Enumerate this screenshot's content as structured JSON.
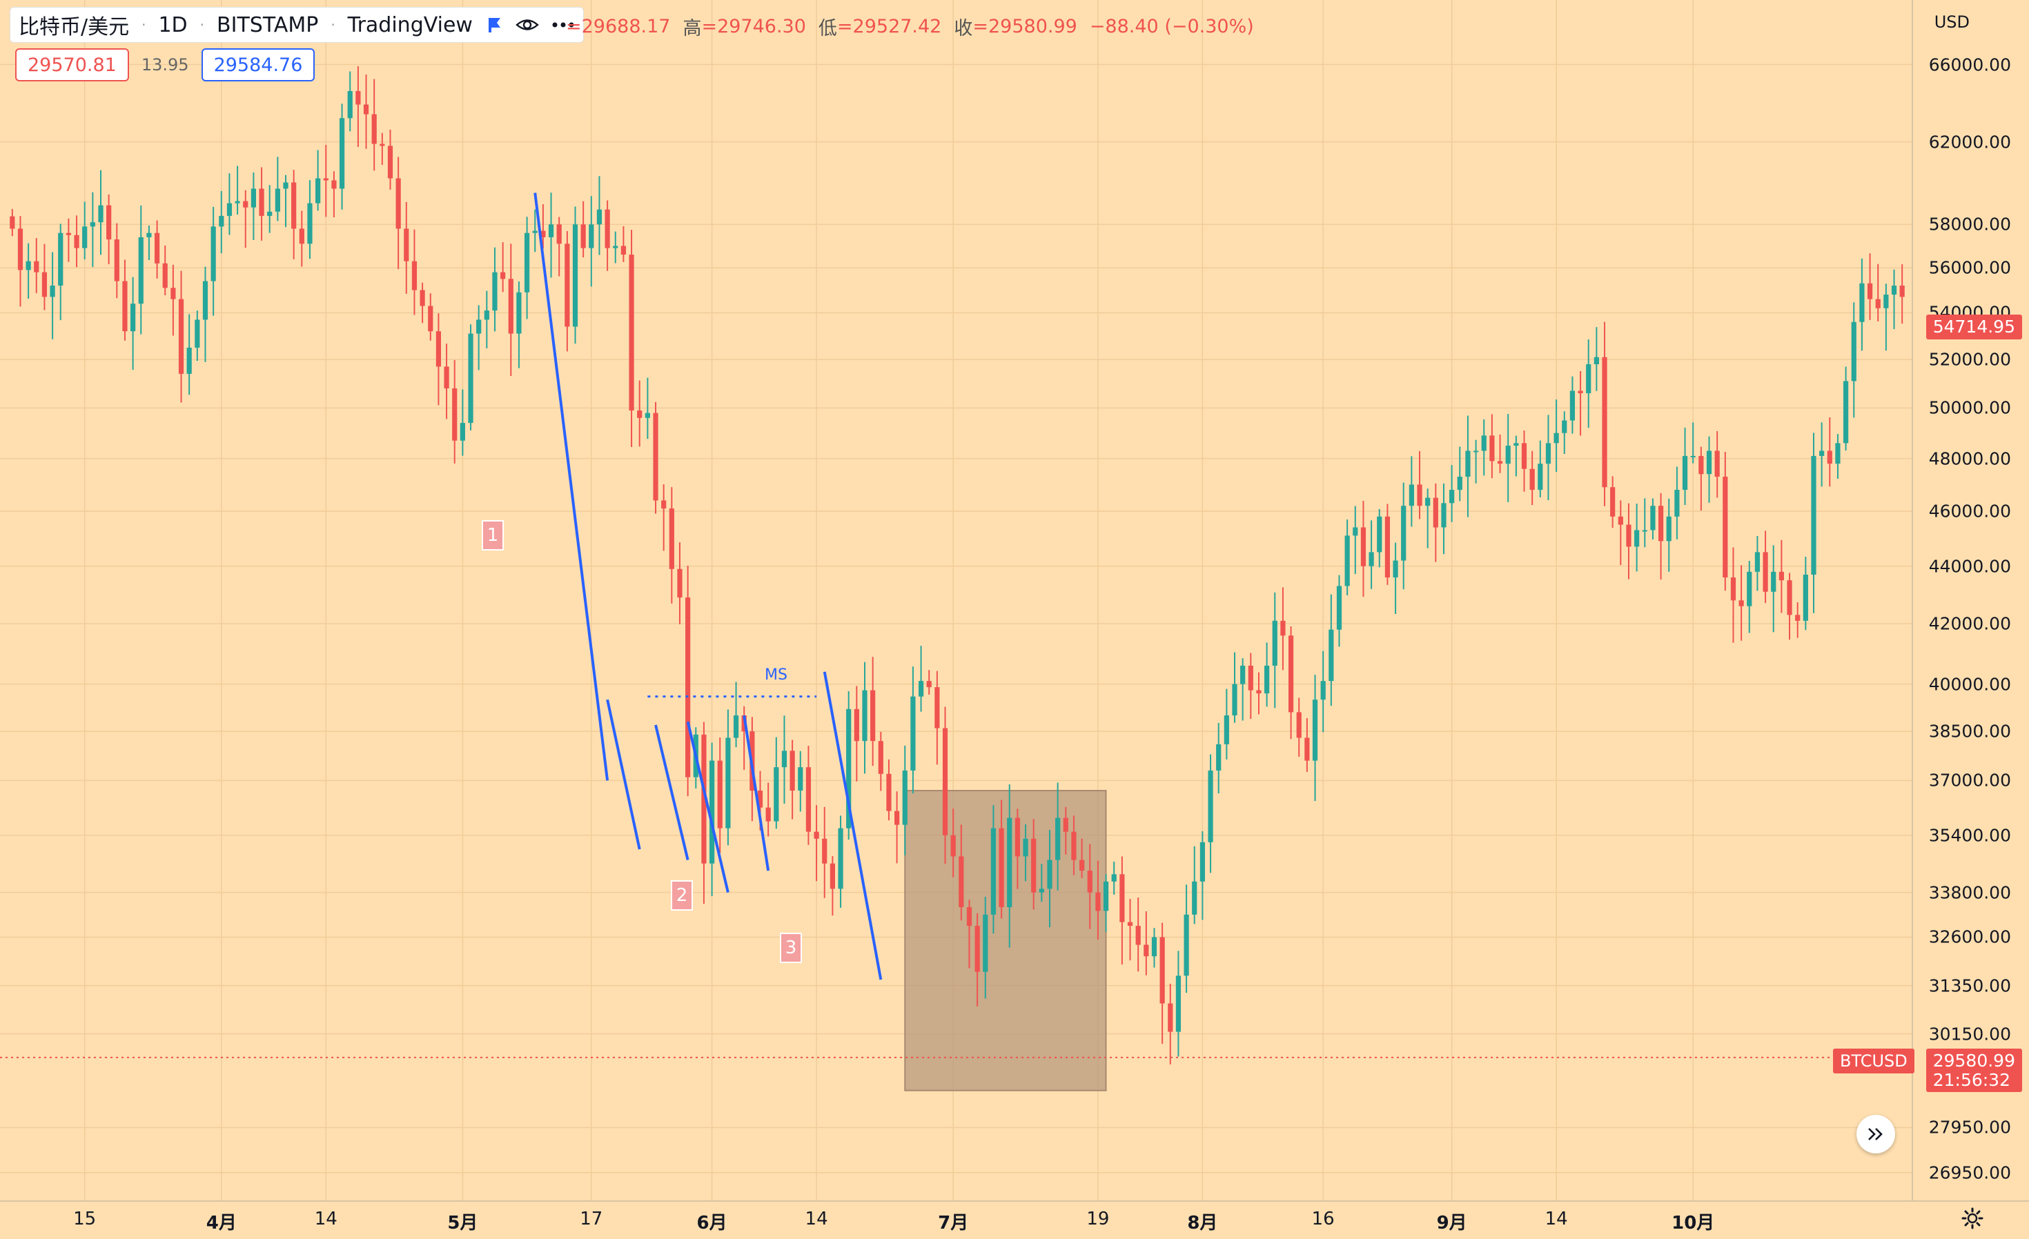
{
  "header": {
    "symbol": "比特币/美元",
    "interval": "1D",
    "exchange": "BITSTAMP",
    "source": "TradingView",
    "ohlc": {
      "open": "=29688.17",
      "high_label": "高",
      "high": "=29746.30",
      "low_label": "低",
      "low": "=29527.42",
      "close_label": "收",
      "close": "=29580.99",
      "change": "−88.40 (−0.30%)"
    },
    "bid": "29570.81",
    "spread": "13.95",
    "ask": "29584.76"
  },
  "price_axis": {
    "currency": "USD",
    "labels": [
      "66000.00",
      "62000.00",
      "58000.00",
      "56000.00",
      "54000.00",
      "52000.00",
      "50000.00",
      "48000.00",
      "46000.00",
      "44000.00",
      "42000.00",
      "40000.00",
      "38500.00",
      "37000.00",
      "35400.00",
      "33800.00",
      "32600.00",
      "31350.00",
      "30150.00",
      "27950.00",
      "26950.00"
    ],
    "current_price": "29580.99",
    "countdown": "21:56:32",
    "symbol_tag": "BTCUSD",
    "crosshair_price": "54714.95"
  },
  "time_axis": {
    "labels": [
      {
        "text": "15",
        "month": false
      },
      {
        "text": "4月",
        "month": true
      },
      {
        "text": "14",
        "month": false
      },
      {
        "text": "5月",
        "month": true
      },
      {
        "text": "17",
        "month": false
      },
      {
        "text": "6月",
        "month": true
      },
      {
        "text": "14",
        "month": false
      },
      {
        "text": "7月",
        "month": true
      },
      {
        "text": "19",
        "month": false
      },
      {
        "text": "8月",
        "month": true
      },
      {
        "text": "16",
        "month": false
      },
      {
        "text": "9月",
        "month": true
      },
      {
        "text": "14",
        "month": false
      },
      {
        "text": "10月",
        "month": true
      }
    ]
  },
  "annotations": {
    "wave_labels": [
      "1",
      "2",
      "3"
    ],
    "ms_label": "MS"
  },
  "colors": {
    "background": "#ffdfb0",
    "up": "#26a69a",
    "down": "#ef5350",
    "trendline": "#2962ff",
    "range_box": "#b89a7d"
  },
  "chart_data": {
    "type": "candlestick",
    "symbol": "BTCUSD",
    "interval": "1D",
    "x_range": [
      "2021-03-06",
      "2021-10-14"
    ],
    "y_range": [
      26500,
      68000
    ],
    "y_scale": "log",
    "closes": [
      57800,
      55900,
      56300,
      55800,
      54700,
      55200,
      57600,
      57500,
      56900,
      57900,
      58100,
      58900,
      57300,
      55400,
      53200,
      54400,
      57400,
      57600,
      56200,
      55100,
      54600,
      51400,
      52500,
      53700,
      55400,
      57900,
      58400,
      59000,
      59100,
      58800,
      59700,
      58400,
      58600,
      59700,
      60000,
      57800,
      57100,
      59000,
      60200,
      60100,
      59700,
      63200,
      64600,
      63900,
      63400,
      61900,
      61800,
      60200,
      57800,
      56300,
      55000,
      54300,
      53200,
      51700,
      50800,
      48700,
      49400,
      53100,
      53700,
      54100,
      55800,
      55500,
      53100,
      54900,
      57600,
      57700,
      57400,
      58000,
      57100,
      53400,
      58000,
      56900,
      58000,
      58700,
      56900,
      57000,
      56600,
      49900,
      49600,
      49800,
      46400,
      46100,
      43900,
      42900,
      37100,
      38400,
      34600,
      37600,
      35600,
      38300,
      39000,
      38500,
      36700,
      36200,
      35800,
      37400,
      37900,
      36700,
      37400,
      35500,
      35300,
      34600,
      33900,
      35600,
      39200,
      38200,
      39800,
      38200,
      37200,
      36100,
      35700,
      37300,
      39600,
      40100,
      39900,
      38600,
      35400,
      34800,
      33400,
      32900,
      31700,
      33200,
      35600,
      33400,
      35900,
      34800,
      35300,
      33800,
      33900,
      34700,
      35900,
      35500,
      34700,
      34400,
      33800,
      33300,
      34100,
      34300,
      33000,
      32900,
      32400,
      32100,
      32600,
      30900,
      30200,
      31600,
      33200,
      34100,
      35200,
      37300,
      38100,
      39000,
      40000,
      40600,
      39800,
      39700,
      40600,
      42100,
      41600,
      39100,
      38300,
      37600,
      39500,
      40100,
      41800,
      43300,
      45100,
      45400,
      44000,
      44500,
      45800,
      43600,
      44200,
      46200,
      47000,
      46200,
      46500,
      45400,
      46300,
      46800,
      47300,
      48300,
      48300,
      48900,
      47900,
      47800,
      48500,
      48600,
      47600,
      46800,
      47800,
      48600,
      49000,
      49500,
      50700,
      50600,
      51800,
      52100,
      46900,
      45800,
      45500,
      44700,
      45300,
      45300,
      46200,
      44900,
      45800,
      46800,
      48100,
      48100,
      47400,
      48300,
      47300,
      43600,
      42800,
      42600,
      43800,
      44500,
      43100,
      43800,
      43500,
      42300,
      42100,
      43700,
      48100,
      48300,
      47800,
      48600,
      51100,
      53600,
      55300,
      54600,
      54200,
      54800,
      55200,
      54700
    ],
    "notes": "Daily BTC/USD candles; closes approximated from the screenshot. Shaded range box spans late June–mid July; blue trendlines mark a wave 1-2-3 sequence with a 'MS' (market structure) level near 39600."
  }
}
